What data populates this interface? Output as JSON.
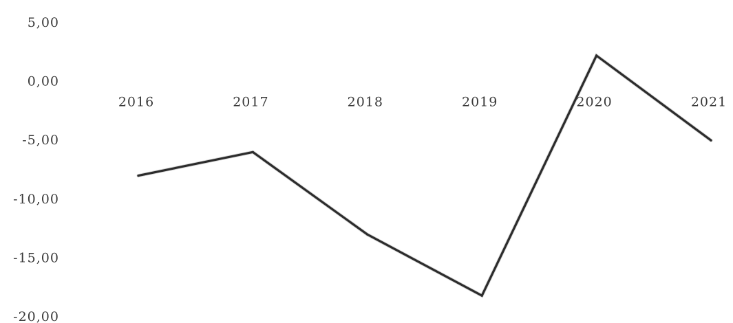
{
  "chart_data": {
    "type": "line",
    "categories": [
      "2016",
      "2017",
      "2018",
      "2019",
      "2020",
      "2021"
    ],
    "series": [
      {
        "values": [
          -8.0,
          -6.0,
          -13.0,
          -18.2,
          2.2,
          -5.0
        ]
      }
    ],
    "ylim": [
      -20,
      5
    ],
    "yticks": [
      "5,00",
      "0,00",
      "-5,00",
      "-10,00",
      "-15,00",
      "-20,00"
    ],
    "ytick_values": [
      5,
      0,
      -5,
      -10,
      -15,
      -20
    ],
    "title": "",
    "xlabel": "",
    "ylabel": "",
    "grid": false,
    "legend": "none",
    "x_axis_position": "at y = 0",
    "colors": {
      "line": "#2c2c2c",
      "text": "#3a3a3a",
      "background": "#ffffff"
    }
  }
}
